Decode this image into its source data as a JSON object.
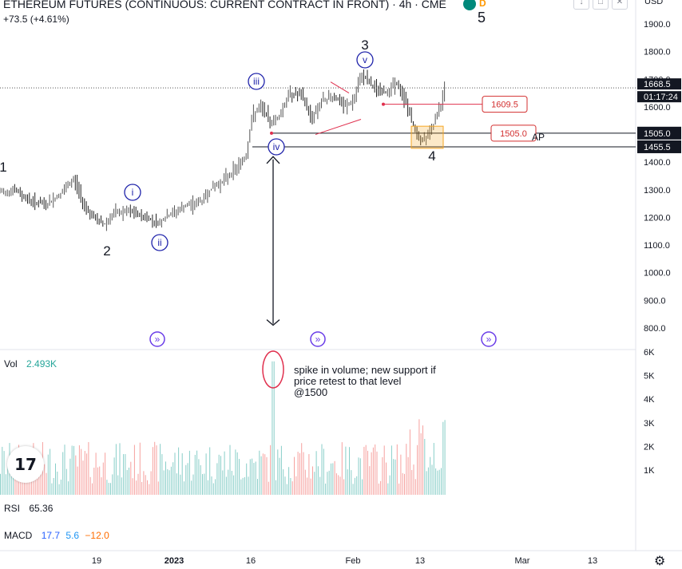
{
  "header": {
    "title": "ETHEREUM FUTURES (CONTINUOUS: CURRENT CONTRACT IN FRONT) · 4h · CME",
    "change": "+73.5 (+4.61%)",
    "badge_d": "D",
    "wave5_label": "5"
  },
  "chart_data": [
    {
      "type": "ohlc",
      "title": "ETHEREUM FUTURES (CONTINUOUS: CURRENT CONTRACT IN FRONT) · 4h · CME",
      "x_ticks": [
        "19",
        "2023",
        "16",
        "Feb",
        "13",
        "Mar",
        "13"
      ],
      "y_axis_label": "USD",
      "y_ticks": [
        800,
        900,
        1000,
        1100,
        1200,
        1300,
        1400,
        1500,
        1600,
        1700,
        1800,
        1900
      ],
      "ylim": [
        720,
        2000
      ],
      "path_points": [
        {
          "x": 0,
          "y": 1290
        },
        {
          "x": 20,
          "y": 1300
        },
        {
          "x": 40,
          "y": 1260
        },
        {
          "x": 60,
          "y": 1245
        },
        {
          "x": 80,
          "y": 1290
        },
        {
          "x": 95,
          "y": 1340
        },
        {
          "x": 105,
          "y": 1260
        },
        {
          "x": 118,
          "y": 1200
        },
        {
          "x": 133,
          "y": 1175
        },
        {
          "x": 145,
          "y": 1215
        },
        {
          "x": 165,
          "y": 1220
        },
        {
          "x": 185,
          "y": 1200
        },
        {
          "x": 200,
          "y": 1180
        },
        {
          "x": 215,
          "y": 1210
        },
        {
          "x": 235,
          "y": 1240
        },
        {
          "x": 255,
          "y": 1260
        },
        {
          "x": 265,
          "y": 1300
        },
        {
          "x": 280,
          "y": 1330
        },
        {
          "x": 295,
          "y": 1370
        },
        {
          "x": 310,
          "y": 1420
        },
        {
          "x": 318,
          "y": 1570
        },
        {
          "x": 330,
          "y": 1600
        },
        {
          "x": 340,
          "y": 1545
        },
        {
          "x": 350,
          "y": 1560
        },
        {
          "x": 365,
          "y": 1650
        },
        {
          "x": 380,
          "y": 1640
        },
        {
          "x": 392,
          "y": 1560
        },
        {
          "x": 405,
          "y": 1620
        },
        {
          "x": 420,
          "y": 1640
        },
        {
          "x": 433,
          "y": 1600
        },
        {
          "x": 445,
          "y": 1620
        },
        {
          "x": 455,
          "y": 1720
        },
        {
          "x": 470,
          "y": 1670
        },
        {
          "x": 485,
          "y": 1650
        },
        {
          "x": 497,
          "y": 1690
        },
        {
          "x": 510,
          "y": 1620
        },
        {
          "x": 518,
          "y": 1540
        },
        {
          "x": 530,
          "y": 1480
        },
        {
          "x": 540,
          "y": 1500
        },
        {
          "x": 548,
          "y": 1560
        },
        {
          "x": 555,
          "y": 1610
        },
        {
          "x": 558,
          "y": 1668
        }
      ],
      "last_price": "1668.5",
      "countdown": "01:17:24",
      "levels": [
        {
          "name": "1505.0",
          "value": 1505.0
        },
        {
          "name": "1455.5",
          "value": 1455.5
        }
      ],
      "price_labels": [
        "1609.5",
        "1505.0"
      ],
      "vwap_fragment": "AP",
      "wave_labels_major": [
        "1",
        "2",
        "3",
        "4"
      ],
      "wave_labels_minor": [
        "i",
        "ii",
        "iii",
        "iv",
        "v"
      ],
      "grid": false
    },
    {
      "type": "bar",
      "title": "Vol",
      "value_label": "2.493K",
      "y_ticks": [
        "1K",
        "2K",
        "3K",
        "4K",
        "5K",
        "6K"
      ],
      "ylim": [
        0,
        6000
      ],
      "spike_value": 5600,
      "annotation": "spike in volume; new support if price retest to that level @1500"
    }
  ],
  "indicators": {
    "rsi_label": "RSI",
    "rsi_value": "65.36",
    "macd_label": "MACD",
    "macd_v1": "17.7",
    "macd_v2": "5.6",
    "macd_v3": "−12.0"
  },
  "colors": {
    "up": "#26a69a",
    "down": "#ef5350",
    "wave_blue": "#1e22aa",
    "annotation_red": "#e0304e",
    "price_box_border": "#d32f2f",
    "zone": "#f5a623"
  },
  "icons": [
    "tradingview-logo-icon",
    "arrow-down-icon",
    "gear-icon",
    "replay-icon"
  ]
}
